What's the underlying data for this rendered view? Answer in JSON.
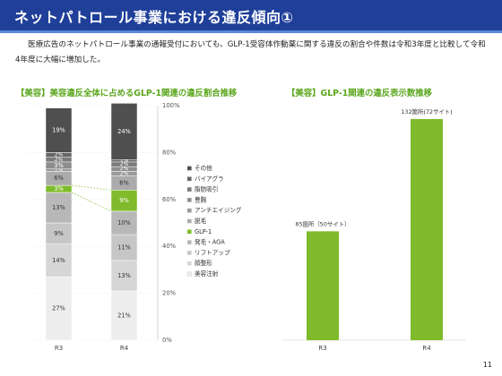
{
  "header": {
    "title": "ネットパトロール事業における違反傾向①"
  },
  "intro": {
    "text": "医療広告のネットパトロール事業の通報受付においても、GLP-1受容体作動薬に関する違反の割合や件数は令和3年度と比較して令和4年度に大幅に増加した。"
  },
  "left_chart_title": "【美容】美容違反全体に占めるGLP-1関連の違反割合推移",
  "right_chart_title": "【美容】GLP-1関連の違反表示数推移",
  "page_number": "11",
  "colors": {
    "header": "#1f3f99",
    "accent": "#5aa61c",
    "glp1": "#7fbb2b"
  },
  "chart_data": [
    {
      "type": "bar",
      "stacked": true,
      "title": "【美容】美容違反全体に占めるGLP-1関連の違反割合推移",
      "categories": [
        "R3",
        "R4"
      ],
      "ylim": [
        0,
        100
      ],
      "yticks": [
        "0%",
        "20%",
        "40%",
        "60%",
        "80%",
        "100%"
      ],
      "legend_position": "right",
      "series": [
        {
          "name": "美容注射",
          "values": [
            27,
            21
          ],
          "labels": [
            "27%",
            "21%"
          ],
          "color": "#ededed"
        },
        {
          "name": "顔整形",
          "values": [
            14,
            13
          ],
          "labels": [
            "14%",
            "13%"
          ],
          "color": "#d6d6d6"
        },
        {
          "name": "リフトアップ",
          "values": [
            9,
            11
          ],
          "labels": [
            "9%",
            "11%"
          ],
          "color": "#c6c6c6"
        },
        {
          "name": "発毛・AGA",
          "values": [
            13,
            10
          ],
          "labels": [
            "13%",
            "10%"
          ],
          "color": "#b8b8b8"
        },
        {
          "name": "GLP-1",
          "values": [
            3,
            9
          ],
          "labels": [
            "3%",
            "9%"
          ],
          "color": "#7fbb2b"
        },
        {
          "name": "脱毛",
          "values": [
            6,
            6
          ],
          "labels": [
            "6%",
            "6%"
          ],
          "color": "#ababab"
        },
        {
          "name": "アンチエイジング",
          "values": [
            1,
            2
          ],
          "labels": [
            "1%",
            "2%"
          ],
          "color": "#9a9a9a"
        },
        {
          "name": "豊胸",
          "values": [
            3,
            2
          ],
          "labels": [
            "3%",
            "2%"
          ],
          "color": "#8e8e8e"
        },
        {
          "name": "脂肪吸引",
          "values": [
            2,
            2
          ],
          "labels": [
            "2%",
            "2%"
          ],
          "color": "#7a7a7a"
        },
        {
          "name": "バイアグラ",
          "values": [
            2,
            1
          ],
          "labels": [
            "2%",
            "1%"
          ],
          "color": "#666666"
        },
        {
          "name": "その他",
          "values": [
            19,
            24
          ],
          "labels": [
            "19%",
            "24%"
          ],
          "color": "#4f4f4f"
        }
      ]
    },
    {
      "type": "bar",
      "title": "【美容】GLP-1関連の違反表示数推移",
      "categories": [
        "R3",
        "R4"
      ],
      "values": [
        65,
        132
      ],
      "labels": [
        "65箇所（50サイト）",
        "132箇所(72サイト)"
      ],
      "ylim": [
        0,
        140
      ],
      "color": "#7fbb2b"
    }
  ]
}
